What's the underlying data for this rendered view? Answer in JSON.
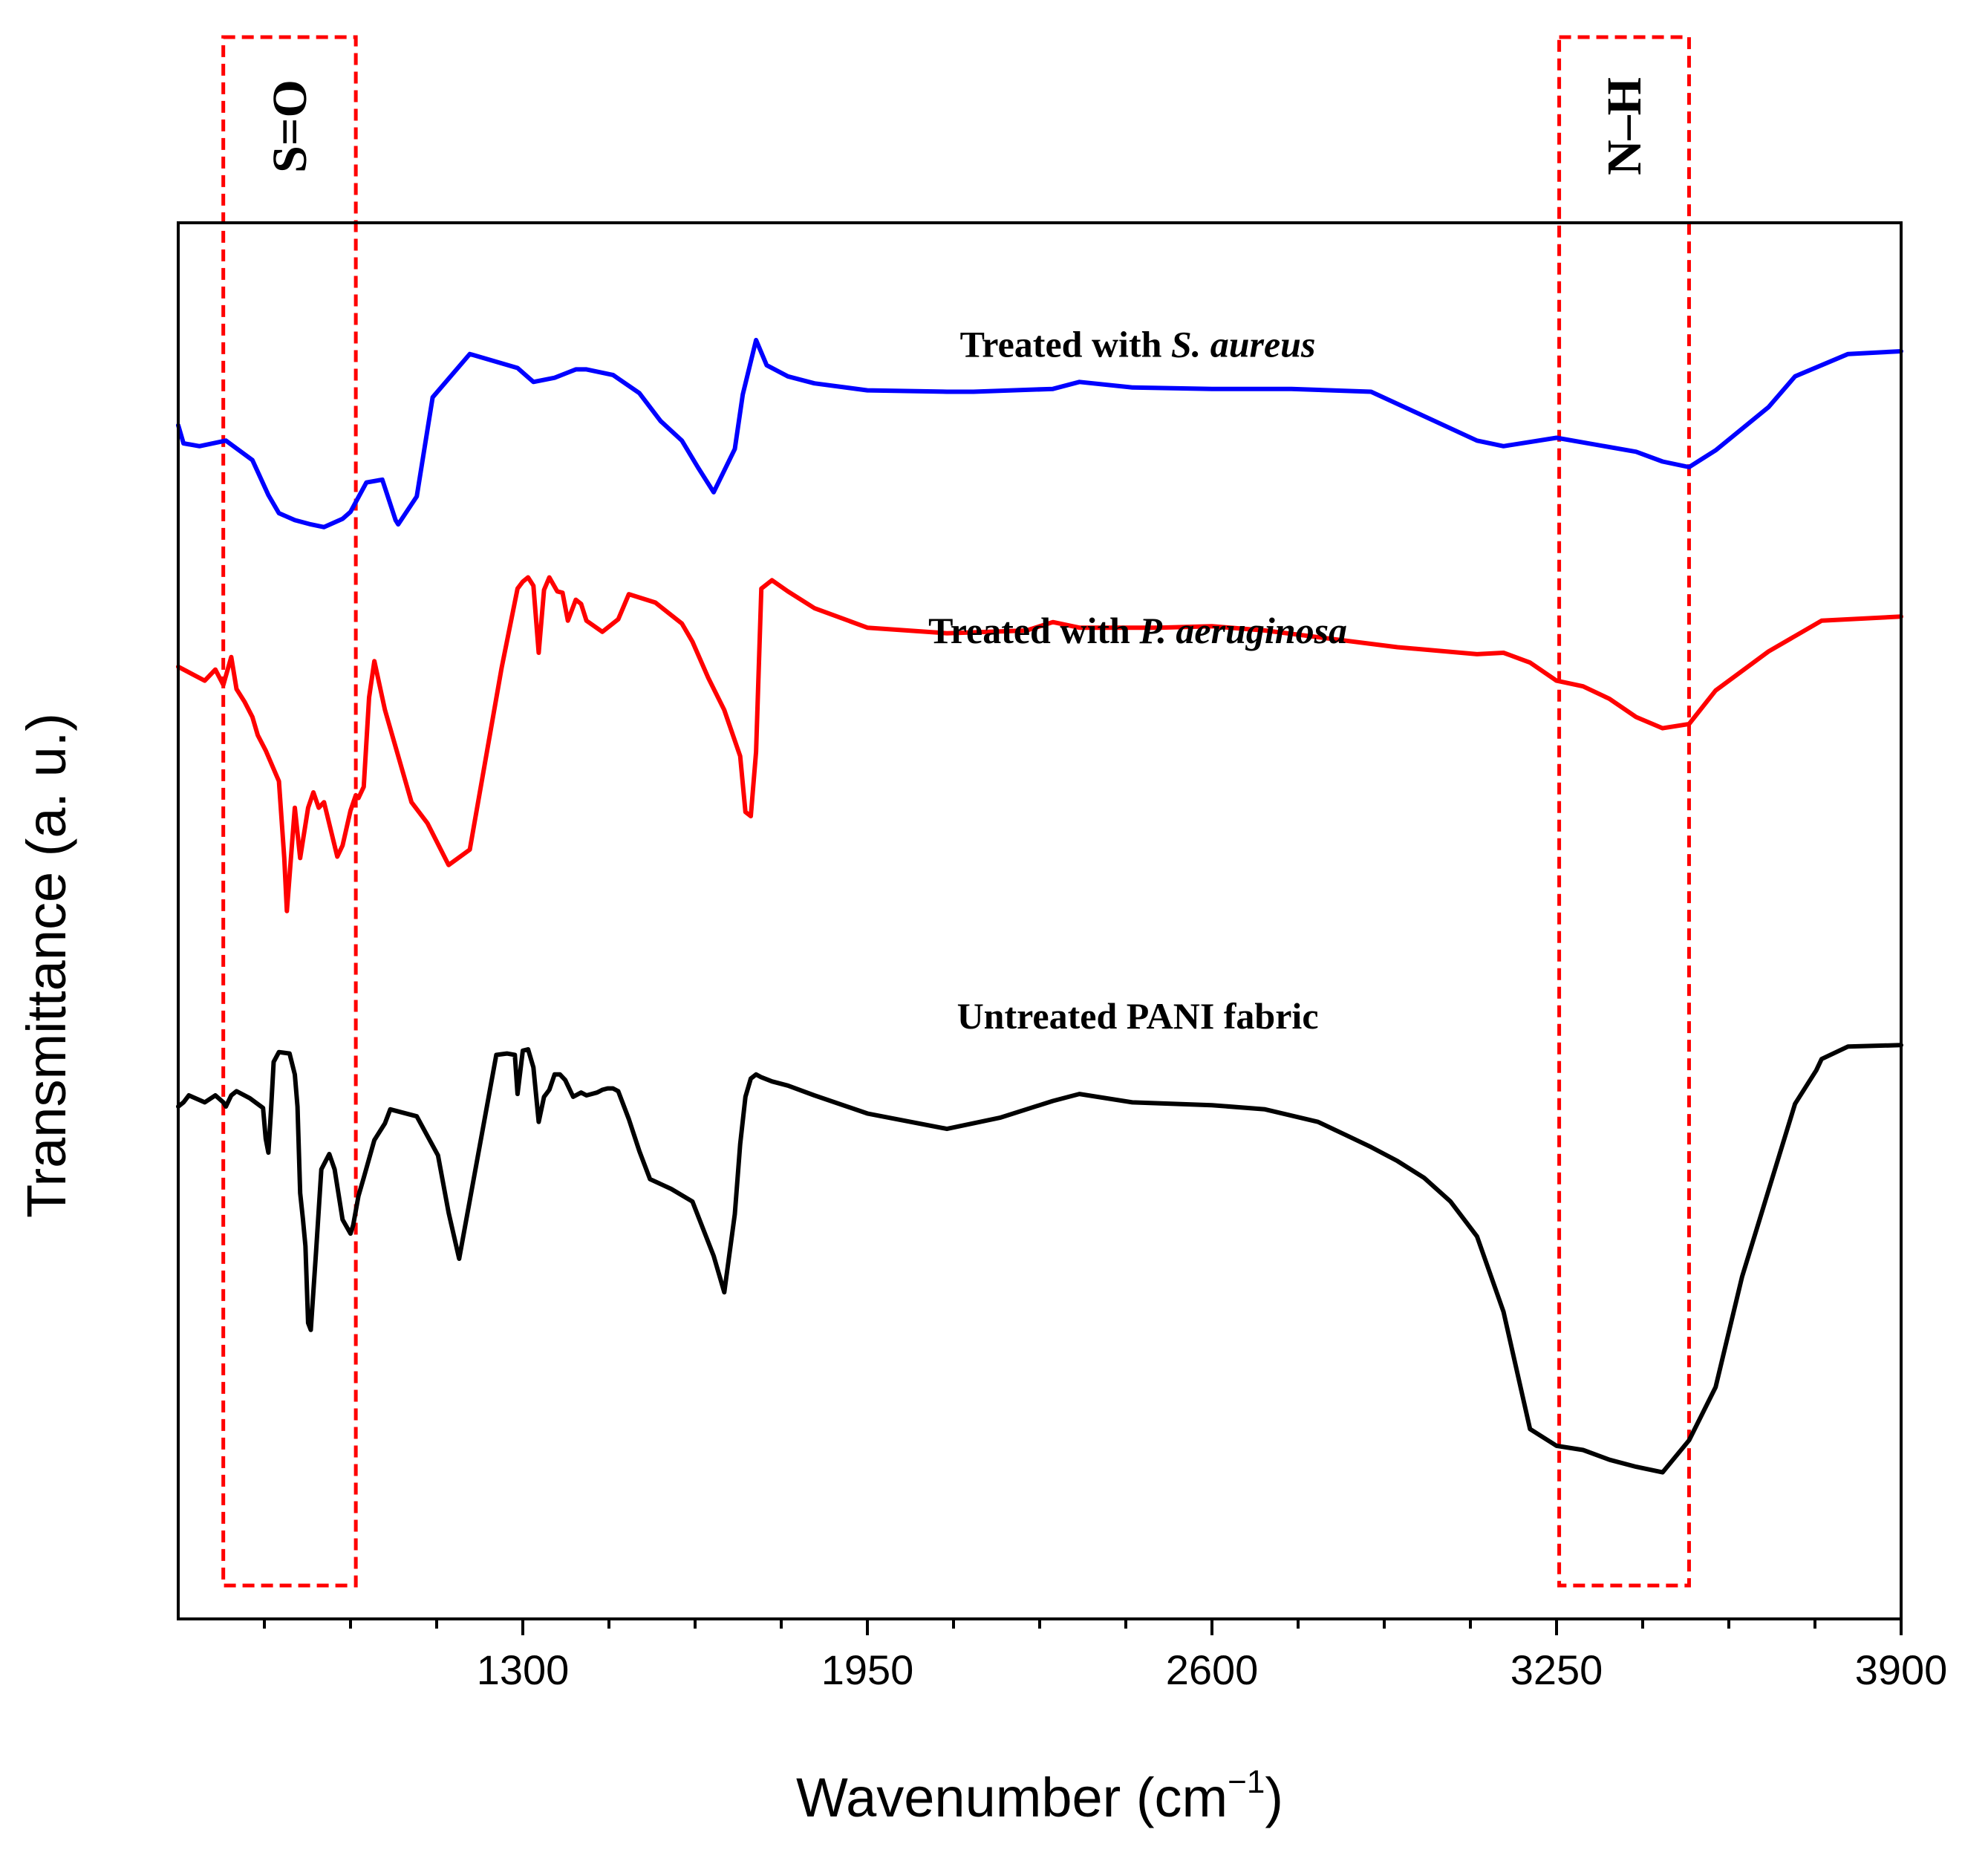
{
  "chart_data": {
    "type": "line",
    "title": "",
    "xlabel_main": "Wavenumber (cm",
    "xlabel_sup": "−1",
    "xlabel_close": ")",
    "ylabel": "Transmittance (a. u.)",
    "xlim": [
      650,
      3900
    ],
    "ylim": [
      0,
      100
    ],
    "x_ticks": [
      1300,
      1950,
      2600,
      3250,
      3900
    ],
    "x_tick_labels": [
      "1300",
      "1950",
      "2600",
      "3250",
      "3900"
    ],
    "x_minor_ticks": [
      812.5,
      975,
      1137.5,
      1462.5,
      1625,
      1787.5,
      2112.5,
      2275,
      2437.5,
      2762.5,
      2925,
      3087.5,
      3412.5,
      3575,
      3737.5
    ],
    "bands": [
      {
        "label": "S=O",
        "x_range": [
          735,
          985
        ],
        "color": "#ff0000"
      },
      {
        "label": "N–H",
        "x_range": [
          3255,
          3500
        ],
        "color": "#ff0000"
      }
    ],
    "series": [
      {
        "name_prefix": "Treated with ",
        "name_italic": "S. aureus",
        "color": "#0000ff",
        "label_x": 2460,
        "label_y": 90.4,
        "x": [
          650,
          660,
          690,
          740,
          790,
          820,
          840,
          870,
          900,
          925,
          960,
          975,
          1005,
          1035,
          1060,
          1065,
          1100,
          1130,
          1200,
          1290,
          1320,
          1360,
          1400,
          1420,
          1470,
          1520,
          1560,
          1600,
          1630,
          1660,
          1700,
          1715,
          1740,
          1760,
          1800,
          1850,
          1950,
          2100,
          2150,
          2300,
          2350,
          2450,
          2600,
          2750,
          2900,
          3100,
          3150,
          3250,
          3400,
          3450,
          3500,
          3550,
          3650,
          3700,
          3800,
          3900
        ],
        "y": [
          85.5,
          84.2,
          84.0,
          84.4,
          83.0,
          80.5,
          79.2,
          78.7,
          78.4,
          78.2,
          78.8,
          79.3,
          81.4,
          81.6,
          78.7,
          78.4,
          80.4,
          87.5,
          90.6,
          89.6,
          88.6,
          88.9,
          89.5,
          89.5,
          89.1,
          87.8,
          85.8,
          84.4,
          82.5,
          80.7,
          83.8,
          87.7,
          91.6,
          89.8,
          89.0,
          88.5,
          88.0,
          87.9,
          87.9,
          88.1,
          88.6,
          88.2,
          88.1,
          88.1,
          87.9,
          84.4,
          84.0,
          84.6,
          83.6,
          82.9,
          82.5,
          83.7,
          86.8,
          89.0,
          90.6,
          90.8
        ]
      },
      {
        "name_prefix": "Treated with ",
        "name_italic": "P. aeruginosa",
        "color": "#ff0000",
        "label_x": 2460,
        "label_y": 69.9,
        "x": [
          650,
          700,
          720,
          735,
          750,
          760,
          775,
          790,
          800,
          815,
          840,
          850,
          855,
          865,
          870,
          880,
          895,
          905,
          915,
          925,
          950,
          960,
          975,
          985,
          990,
          1000,
          1010,
          1020,
          1040,
          1090,
          1120,
          1160,
          1200,
          1260,
          1290,
          1300,
          1310,
          1320,
          1330,
          1340,
          1350,
          1365,
          1375,
          1385,
          1400,
          1410,
          1420,
          1450,
          1480,
          1500,
          1550,
          1600,
          1620,
          1650,
          1680,
          1710,
          1720,
          1730,
          1740,
          1750,
          1770,
          1800,
          1850,
          1950,
          2100,
          2250,
          2300,
          2350,
          2500,
          2600,
          2700,
          2950,
          3100,
          3150,
          3200,
          3250,
          3300,
          3350,
          3400,
          3450,
          3500,
          3550,
          3650,
          3750,
          3900
        ],
        "y": [
          68.2,
          67.2,
          68.0,
          66.9,
          68.9,
          66.6,
          65.7,
          64.6,
          63.3,
          62.2,
          60.0,
          54.5,
          50.7,
          55.7,
          58.1,
          54.5,
          58.1,
          59.2,
          58.1,
          58.5,
          54.6,
          55.4,
          57.9,
          59.0,
          58.8,
          59.6,
          66.0,
          68.6,
          65.1,
          58.5,
          57.0,
          54.0,
          55.1,
          68.1,
          73.8,
          74.3,
          74.6,
          74.0,
          69.2,
          73.7,
          74.6,
          73.6,
          73.5,
          71.5,
          73.0,
          72.7,
          71.5,
          70.7,
          71.6,
          73.4,
          72.8,
          71.3,
          70.0,
          67.4,
          65.1,
          61.8,
          57.8,
          57.5,
          62.1,
          73.8,
          74.4,
          73.6,
          72.4,
          71.0,
          70.6,
          70.8,
          71.4,
          71.0,
          71.0,
          71.1,
          70.8,
          69.6,
          69.1,
          69.2,
          68.5,
          67.2,
          66.8,
          65.9,
          64.6,
          63.8,
          64.1,
          66.5,
          69.3,
          71.5,
          71.8
        ]
      },
      {
        "name_prefix": "Untreated PANI fabric",
        "name_italic": "",
        "color": "#000000",
        "label_x": 2460,
        "label_y": 42.3,
        "x": [
          650,
          660,
          670,
          700,
          720,
          735,
          740,
          750,
          760,
          785,
          810,
          815,
          820,
          825,
          830,
          840,
          860,
          870,
          875,
          880,
          885,
          890,
          895,
          900,
          910,
          920,
          935,
          945,
          960,
          975,
          980,
          990,
          1000,
          1020,
          1040,
          1050,
          1100,
          1140,
          1160,
          1180,
          1250,
          1270,
          1285,
          1290,
          1300,
          1310,
          1320,
          1330,
          1340,
          1350,
          1360,
          1370,
          1380,
          1395,
          1410,
          1420,
          1430,
          1440,
          1445,
          1450,
          1460,
          1470,
          1480,
          1500,
          1520,
          1540,
          1580,
          1620,
          1660,
          1680,
          1700,
          1710,
          1720,
          1730,
          1740,
          1750,
          1770,
          1800,
          1850,
          1950,
          2100,
          2200,
          2300,
          2350,
          2450,
          2600,
          2700,
          2800,
          2850,
          2900,
          2950,
          3000,
          3050,
          3100,
          3150,
          3200,
          3250,
          3300,
          3350,
          3400,
          3450,
          3500,
          3550,
          3600,
          3650,
          3700,
          3740,
          3750,
          3800,
          3900
        ],
        "y": [
          36.7,
          37.0,
          37.5,
          37.0,
          37.5,
          37.0,
          36.7,
          37.5,
          37.8,
          37.3,
          36.6,
          34.4,
          33.4,
          36.4,
          39.9,
          40.6,
          40.5,
          39.0,
          36.7,
          30.5,
          28.7,
          26.7,
          21.2,
          20.7,
          26.3,
          32.2,
          33.3,
          32.2,
          28.6,
          27.6,
          28.2,
          30.3,
          31.6,
          34.3,
          35.5,
          36.5,
          36.0,
          33.2,
          29.1,
          25.8,
          40.4,
          40.5,
          40.4,
          37.6,
          40.7,
          40.8,
          39.5,
          35.6,
          37.4,
          37.9,
          39.0,
          39.0,
          38.6,
          37.4,
          37.7,
          37.5,
          37.6,
          37.7,
          37.8,
          37.9,
          38.0,
          38.0,
          37.8,
          35.8,
          33.5,
          31.5,
          30.8,
          29.9,
          26.0,
          23.4,
          29.0,
          34.0,
          37.4,
          38.7,
          39.0,
          38.8,
          38.5,
          38.2,
          37.5,
          36.2,
          35.1,
          35.9,
          37.1,
          37.6,
          37.0,
          36.8,
          36.5,
          35.6,
          34.7,
          33.8,
          32.8,
          31.6,
          29.9,
          27.4,
          22.0,
          13.6,
          12.4,
          12.1,
          11.4,
          10.9,
          10.5,
          12.8,
          16.6,
          24.5,
          30.7,
          36.9,
          39.3,
          40.1,
          41.0,
          41.1
        ]
      }
    ]
  }
}
